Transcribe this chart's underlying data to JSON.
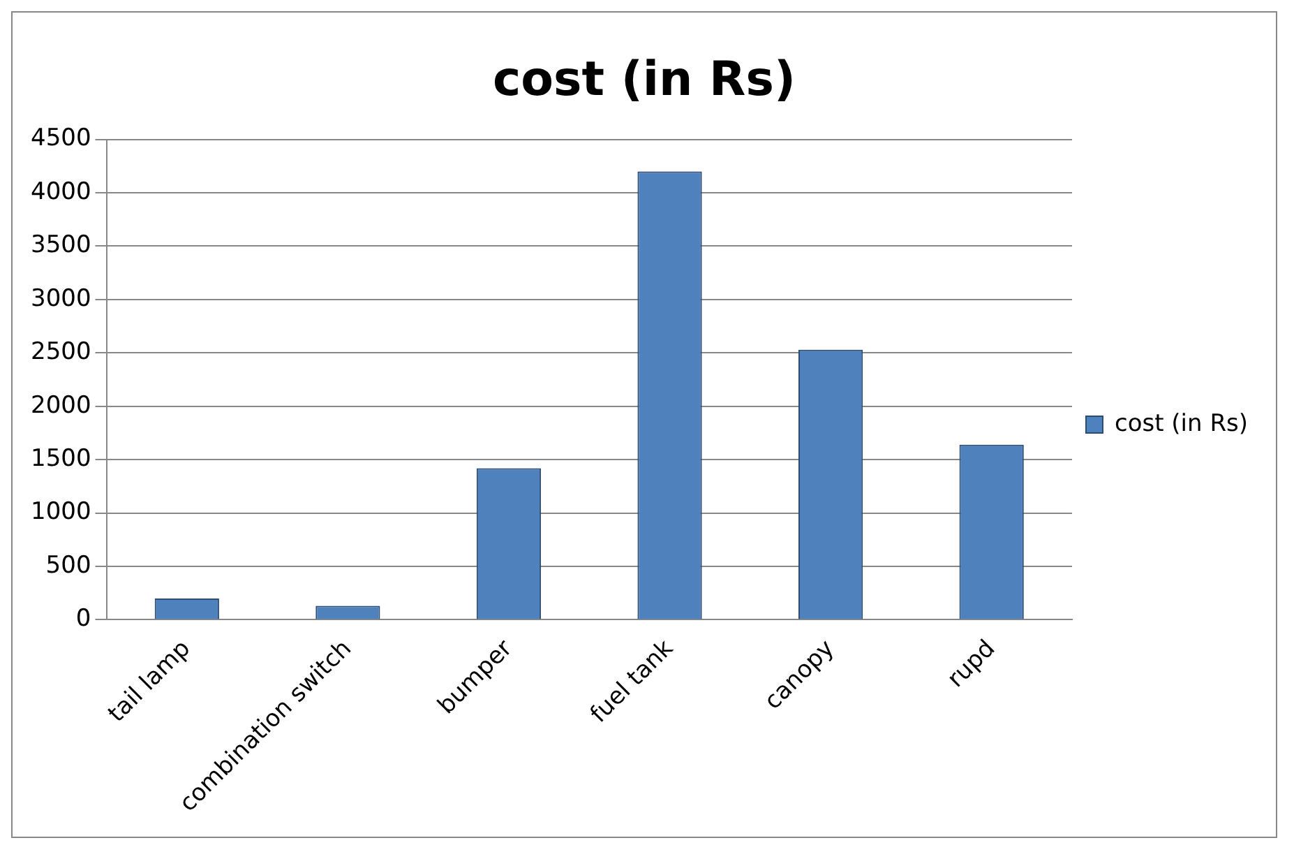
{
  "chart_data": {
    "type": "bar",
    "title": "cost (in Rs)",
    "categories": [
      "tail lamp",
      "combination switch",
      "bumper",
      "fuel tank",
      "canopy",
      "rupd"
    ],
    "series": [
      {
        "name": "cost (in Rs)",
        "color": "#4f81bd",
        "values": [
          200,
          130,
          1420,
          4200,
          2530,
          1640
        ]
      }
    ],
    "ylim": [
      0,
      4500
    ],
    "yticks": [
      0,
      500,
      1000,
      1500,
      2000,
      2500,
      3000,
      3500,
      4000,
      4500
    ],
    "grid": "y",
    "legend": "right"
  }
}
